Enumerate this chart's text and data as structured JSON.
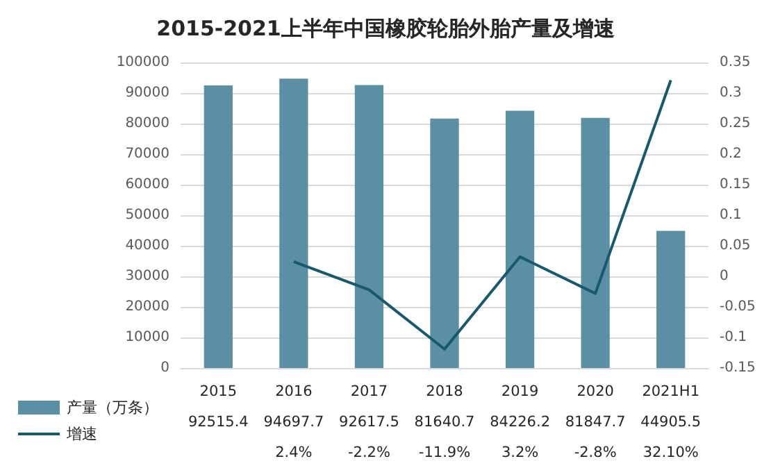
{
  "chart_data": {
    "type": "bar",
    "title": "2015-2021上半年中国橡胶轮胎外胎产量及增速",
    "categories": [
      "2015",
      "2016",
      "2017",
      "2018",
      "2019",
      "2020",
      "2021H1"
    ],
    "series": [
      {
        "name": "产量（万条）",
        "color": "#5b8fa3",
        "values": [
          92515.4,
          94697.7,
          92617.5,
          81640.7,
          84226.2,
          81847.7,
          44905.5
        ]
      },
      {
        "name": "增速",
        "type": "line",
        "axis": "y2",
        "color": "#18596d",
        "marker": "none",
        "values": [
          null,
          0.024,
          -0.022,
          -0.119,
          0.032,
          -0.028,
          0.321
        ],
        "value_labels": [
          null,
          "2.4%",
          "-2.2%",
          "-11.9%",
          "3.2%",
          "-2.8%",
          "32.10%"
        ]
      }
    ],
    "data_labels": true,
    "ylim": [
      0,
      100000
    ],
    "yticks": [
      0,
      10000,
      20000,
      30000,
      40000,
      50000,
      60000,
      70000,
      80000,
      90000,
      100000
    ],
    "y2lim": [
      -0.15,
      0.35
    ],
    "y2ticks": [
      -0.15,
      -0.1,
      -0.05,
      0,
      0.05,
      0.1,
      0.15,
      0.2,
      0.25,
      0.3,
      0.35
    ],
    "grid": "y",
    "legend": "bottom left"
  }
}
